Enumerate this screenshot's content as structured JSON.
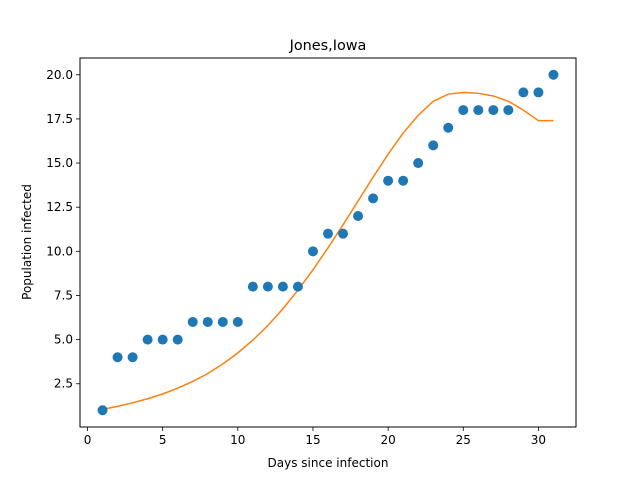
{
  "chart_data": {
    "type": "scatter",
    "title": "Jones,Iowa",
    "xlabel": "Days since infection",
    "ylabel": "Population infected",
    "xlim": [
      -0.5,
      32.5
    ],
    "ylim": [
      0.05,
      20.95
    ],
    "xticks": [
      0,
      5,
      10,
      15,
      20,
      25,
      30
    ],
    "xtick_labels": [
      "0",
      "5",
      "10",
      "15",
      "20",
      "25",
      "30"
    ],
    "yticks": [
      2.5,
      5.0,
      7.5,
      10.0,
      12.5,
      15.0,
      17.5,
      20.0
    ],
    "ytick_labels": [
      "2.5",
      "5.0",
      "7.5",
      "10.0",
      "12.5",
      "15.0",
      "17.5",
      "20.0"
    ],
    "grid": false,
    "series": [
      {
        "kind": "scatter",
        "color": "#1f77b4",
        "x": [
          1,
          2,
          3,
          4,
          5,
          6,
          7,
          8,
          9,
          10,
          11,
          12,
          13,
          14,
          15,
          16,
          17,
          18,
          19,
          20,
          21,
          22,
          23,
          24,
          25,
          26,
          27,
          28,
          29,
          30,
          31
        ],
        "y": [
          1,
          4,
          4,
          5,
          5,
          5,
          6,
          6,
          6,
          6,
          8,
          8,
          8,
          8,
          10,
          11,
          11,
          12,
          13,
          14,
          14,
          15,
          16,
          17,
          18,
          18,
          18,
          18,
          19,
          19,
          20
        ]
      },
      {
        "kind": "line",
        "color": "#ff7f0e",
        "x": [
          1,
          2,
          3,
          4,
          5,
          6,
          7,
          8,
          9,
          10,
          11,
          12,
          13,
          14,
          15,
          16,
          17,
          18,
          19,
          20,
          21,
          22,
          23,
          24,
          25,
          26,
          27,
          28,
          29,
          30,
          31
        ],
        "y": [
          1.05,
          1.22,
          1.42,
          1.65,
          1.92,
          2.25,
          2.63,
          3.08,
          3.62,
          4.25,
          4.97,
          5.8,
          6.75,
          7.8,
          8.95,
          10.2,
          11.5,
          12.85,
          14.2,
          15.5,
          16.7,
          17.7,
          18.5,
          18.9,
          19.0,
          18.95,
          18.8,
          18.5,
          18.0,
          17.4,
          17.4
        ]
      }
    ]
  }
}
